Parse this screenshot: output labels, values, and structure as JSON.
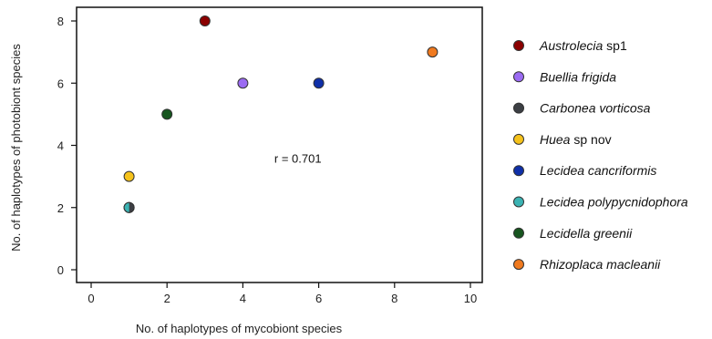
{
  "chart_data": {
    "type": "scatter",
    "xlabel": "No. of haplotypes of mycobiont species",
    "ylabel": "No. of haplotypes of photobiont species",
    "xlim": [
      0,
      10
    ],
    "ylim": [
      0,
      8
    ],
    "xticks": [
      "0",
      "2",
      "4",
      "6",
      "8",
      "10"
    ],
    "yticks": [
      "0",
      "2",
      "4",
      "6",
      "8"
    ],
    "annotation": "r = 0.701",
    "legend_position": "right",
    "series": [
      {
        "name_italic": "Austrolecia",
        "name_plain": " sp1",
        "x": 3,
        "y": 8,
        "color": "#8b0000"
      },
      {
        "name_italic": "Buellia frigida",
        "name_plain": "",
        "x": 4,
        "y": 6,
        "color": "#9b6bf2"
      },
      {
        "name_italic": "Carbonea vorticosa",
        "name_plain": "",
        "x": 1,
        "y": 2,
        "color": "#3c3f44"
      },
      {
        "name_italic": "Huea",
        "name_plain": " sp nov",
        "x": 1,
        "y": 3,
        "color": "#f5c21b"
      },
      {
        "name_italic": "Lecidea cancriformis",
        "name_plain": "",
        "x": 6,
        "y": 6,
        "color": "#0f2fa8"
      },
      {
        "name_italic": "Lecidea polypycnidophora",
        "name_plain": "",
        "x": 1,
        "y": 2,
        "color": "#3bb3b3"
      },
      {
        "name_italic": "Lecidella greenii",
        "name_plain": "",
        "x": 2,
        "y": 5,
        "color": "#17551f"
      },
      {
        "name_italic": "Rhizoplaca macleanii",
        "name_plain": "",
        "x": 9,
        "y": 7,
        "color": "#f07a1f"
      }
    ]
  }
}
